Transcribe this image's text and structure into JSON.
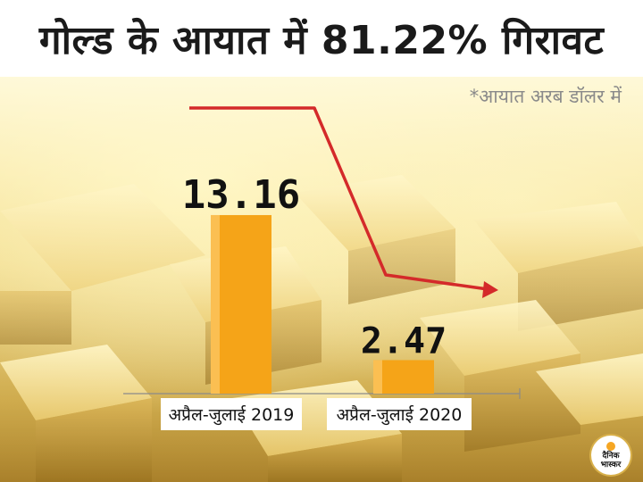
{
  "header": {
    "title": "गोल्ड के आयात में 81.22% गिरावट"
  },
  "note": "*आयात अरब डॉलर में",
  "logo": {
    "lines": [
      "दैनिक",
      "भास्कर"
    ]
  },
  "colors": {
    "bar": "#f5a418",
    "trend_arrow": "#d42a2a",
    "axis": "#8a8a8a"
  },
  "chart_data": {
    "type": "bar",
    "categories": [
      "अप्रैल-जुलाई 2019",
      "अप्रैल-जुलाई 2020"
    ],
    "values": [
      13.16,
      2.47
    ],
    "data_labels": [
      "13.16",
      "2.47"
    ],
    "title": "गोल्ड के आयात में 81.22% गिरावट",
    "xlabel": "",
    "ylabel": "",
    "grid": false,
    "legend": "none",
    "trend_arrow": "down"
  }
}
